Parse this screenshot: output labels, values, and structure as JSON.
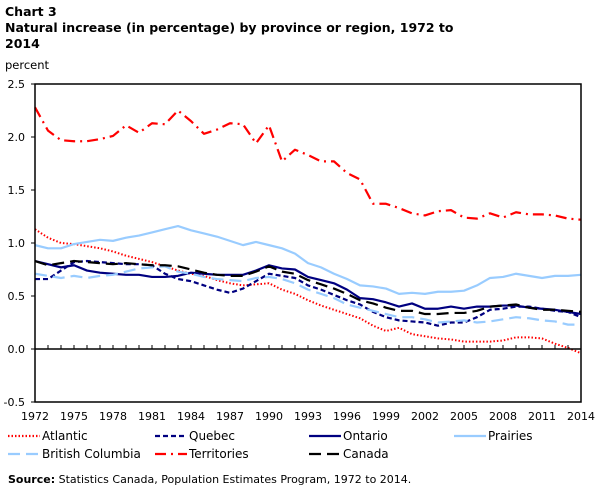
{
  "header": {
    "chart_number": "Chart 3",
    "title": "Natural increase (in percentage) by province or region, 1972 to 2014",
    "unit_label": "percent"
  },
  "source": {
    "label": "Source:",
    "text": "Statistics Canada, Population Estimates Program, 1972 to 2014."
  },
  "chart_data": {
    "type": "line",
    "title": "Natural increase (in percentage) by province or region, 1972 to 2014",
    "xlabel": "",
    "ylabel": "percent",
    "ylim": [
      -0.5,
      2.5
    ],
    "xlim": [
      1972,
      2014
    ],
    "yticks": [
      "2.5",
      "2.0",
      "1.5",
      "1.0",
      "0.5",
      "0.0",
      "-0.5"
    ],
    "ytick_values": [
      2.5,
      2.0,
      1.5,
      1.0,
      0.5,
      0.0,
      -0.5
    ],
    "xticks": [
      "1972",
      "1975",
      "1978",
      "1981",
      "1984",
      "1987",
      "1990",
      "1993",
      "1996",
      "1999",
      "2002",
      "2005",
      "2008",
      "2011",
      "2014"
    ],
    "grid": false,
    "legend_placement": "bottom",
    "x": [
      1972,
      1973,
      1974,
      1975,
      1976,
      1977,
      1978,
      1979,
      1980,
      1981,
      1982,
      1983,
      1984,
      1985,
      1986,
      1987,
      1988,
      1989,
      1990,
      1991,
      1992,
      1993,
      1994,
      1995,
      1996,
      1997,
      1998,
      1999,
      2000,
      2001,
      2002,
      2003,
      2004,
      2005,
      2006,
      2007,
      2008,
      2009,
      2010,
      2011,
      2012,
      2013,
      2014
    ],
    "series": [
      {
        "name": "Atlantic",
        "color": "#ff0000",
        "style": "dotted",
        "values": [
          1.13,
          1.05,
          1.0,
          0.99,
          0.97,
          0.95,
          0.92,
          0.88,
          0.85,
          0.82,
          0.78,
          0.74,
          0.71,
          0.69,
          0.65,
          0.62,
          0.6,
          0.61,
          0.62,
          0.56,
          0.52,
          0.46,
          0.41,
          0.37,
          0.33,
          0.29,
          0.22,
          0.17,
          0.2,
          0.14,
          0.12,
          0.1,
          0.09,
          0.07,
          0.07,
          0.07,
          0.08,
          0.11,
          0.11,
          0.1,
          0.05,
          0.01,
          -0.04
        ]
      },
      {
        "name": "Quebec",
        "color": "#000080",
        "style": "short-dash",
        "values": [
          0.66,
          0.66,
          0.74,
          0.82,
          0.83,
          0.82,
          0.81,
          0.8,
          0.8,
          0.79,
          0.71,
          0.66,
          0.64,
          0.6,
          0.56,
          0.53,
          0.57,
          0.64,
          0.71,
          0.69,
          0.67,
          0.6,
          0.56,
          0.51,
          0.46,
          0.42,
          0.35,
          0.3,
          0.27,
          0.26,
          0.25,
          0.22,
          0.25,
          0.25,
          0.3,
          0.37,
          0.38,
          0.4,
          0.4,
          0.38,
          0.36,
          0.35,
          0.3
        ]
      },
      {
        "name": "Ontario",
        "color": "#000080",
        "style": "solid",
        "values": [
          0.83,
          0.8,
          0.77,
          0.79,
          0.74,
          0.72,
          0.71,
          0.7,
          0.7,
          0.68,
          0.68,
          0.69,
          0.72,
          0.71,
          0.7,
          0.7,
          0.7,
          0.74,
          0.79,
          0.76,
          0.75,
          0.68,
          0.65,
          0.62,
          0.56,
          0.48,
          0.47,
          0.44,
          0.4,
          0.43,
          0.38,
          0.38,
          0.4,
          0.38,
          0.4,
          0.4,
          0.41,
          0.41,
          0.39,
          0.38,
          0.37,
          0.35,
          0.33
        ]
      },
      {
        "name": "Prairies",
        "color": "#99ccff",
        "style": "solid",
        "values": [
          0.98,
          0.95,
          0.95,
          0.99,
          1.01,
          1.03,
          1.02,
          1.05,
          1.07,
          1.1,
          1.13,
          1.16,
          1.12,
          1.09,
          1.06,
          1.02,
          0.98,
          1.01,
          0.98,
          0.95,
          0.9,
          0.81,
          0.77,
          0.71,
          0.66,
          0.6,
          0.59,
          0.57,
          0.52,
          0.53,
          0.52,
          0.54,
          0.54,
          0.55,
          0.6,
          0.67,
          0.68,
          0.71,
          0.69,
          0.67,
          0.69,
          0.69,
          0.7
        ]
      },
      {
        "name": "British Columbia",
        "color": "#99ccff",
        "style": "long-dash",
        "values": [
          0.71,
          0.69,
          0.67,
          0.69,
          0.67,
          0.69,
          0.7,
          0.73,
          0.76,
          0.77,
          0.78,
          0.73,
          0.71,
          0.68,
          0.66,
          0.65,
          0.64,
          0.67,
          0.68,
          0.66,
          0.62,
          0.56,
          0.52,
          0.48,
          0.42,
          0.39,
          0.36,
          0.33,
          0.3,
          0.3,
          0.28,
          0.25,
          0.26,
          0.27,
          0.25,
          0.26,
          0.28,
          0.3,
          0.29,
          0.27,
          0.26,
          0.23,
          0.23
        ]
      },
      {
        "name": "Territories",
        "color": "#ff0000",
        "style": "dash-dot",
        "values": [
          2.28,
          2.06,
          1.97,
          1.96,
          1.96,
          1.98,
          2.01,
          2.11,
          2.04,
          2.13,
          2.12,
          2.25,
          2.15,
          2.03,
          2.07,
          2.13,
          2.12,
          1.94,
          2.11,
          1.77,
          1.88,
          1.83,
          1.77,
          1.77,
          1.66,
          1.6,
          1.37,
          1.37,
          1.33,
          1.28,
          1.26,
          1.3,
          1.31,
          1.24,
          1.23,
          1.28,
          1.24,
          1.29,
          1.27,
          1.27,
          1.26,
          1.23,
          1.22
        ]
      },
      {
        "name": "Canada",
        "color": "#000000",
        "style": "long-dash",
        "values": [
          0.83,
          0.79,
          0.81,
          0.83,
          0.82,
          0.81,
          0.8,
          0.81,
          0.8,
          0.79,
          0.79,
          0.78,
          0.75,
          0.72,
          0.7,
          0.69,
          0.69,
          0.73,
          0.78,
          0.73,
          0.71,
          0.65,
          0.61,
          0.57,
          0.52,
          0.46,
          0.43,
          0.39,
          0.36,
          0.36,
          0.33,
          0.33,
          0.34,
          0.34,
          0.36,
          0.4,
          0.41,
          0.42,
          0.39,
          0.37,
          0.37,
          0.36,
          0.35
        ]
      }
    ]
  }
}
